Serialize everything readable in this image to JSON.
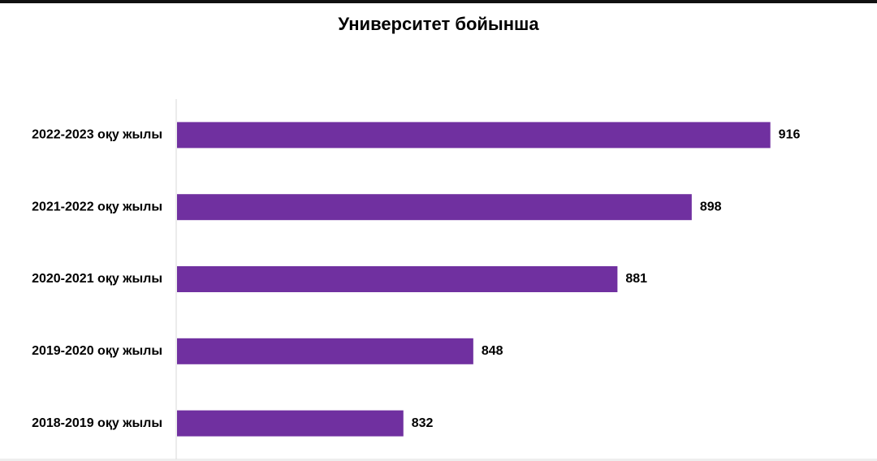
{
  "chart_data": {
    "type": "hbar",
    "title": "Университет бойынша",
    "categories": [
      "2022-2023 оқу жылы",
      "2021-2022 оқу жылы",
      "2020-2021 оқу жылы",
      "2019-2020 оқу жылы",
      "2018-2019 оқу жылы"
    ],
    "values": [
      916,
      898,
      881,
      848,
      832
    ],
    "color": "#7030a0",
    "xlim": [
      780,
      930
    ]
  }
}
